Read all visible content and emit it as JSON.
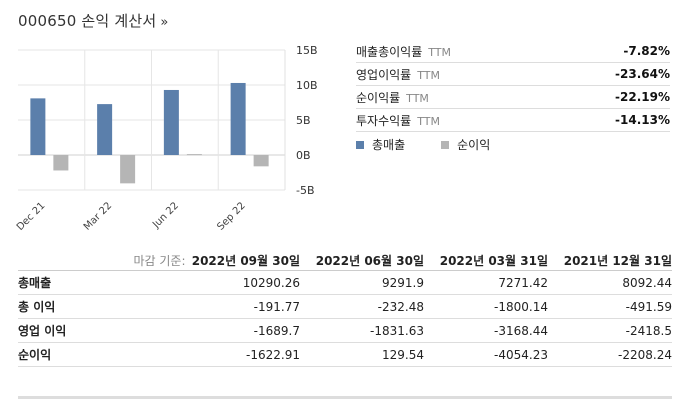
{
  "header": {
    "title": "000650 손익 계산서",
    "chevron": "»"
  },
  "chart_data": {
    "type": "bar",
    "categories": [
      "Dec 21",
      "Mar 22",
      "Jun 22",
      "Sep 22"
    ],
    "series": [
      {
        "name": "총매출",
        "values": [
          8.09,
          7.27,
          9.29,
          10.29
        ],
        "color": "#5b7fab"
      },
      {
        "name": "순이익",
        "values": [
          -2.21,
          -4.05,
          0.13,
          -1.62
        ],
        "color": "#b5b5b5"
      }
    ],
    "ylim": [
      -5,
      15
    ],
    "ytick_labels": [
      "15B",
      "10B",
      "5B",
      "0B",
      "-5B"
    ],
    "ytick_values": [
      15,
      10,
      5,
      0,
      -5
    ],
    "grid": true,
    "legend_position": "right"
  },
  "ratios": [
    {
      "label": "매출총이익률",
      "suffix": "TTM",
      "value": "-7.82%"
    },
    {
      "label": "영업이익률",
      "suffix": "TTM",
      "value": "-23.64%"
    },
    {
      "label": "순이익률",
      "suffix": "TTM",
      "value": "-22.19%"
    },
    {
      "label": "투자수익률",
      "suffix": "TTM",
      "value": "-14.13%"
    }
  ],
  "legend": [
    {
      "label": "총매출",
      "color": "#5b7fab"
    },
    {
      "label": "순이익",
      "color": "#b5b5b5"
    }
  ],
  "table": {
    "caption": "마감 기준:",
    "columns": [
      "2022년 09월 30일",
      "2022년 06월 30일",
      "2022년 03월 31일",
      "2021년 12월 31일"
    ],
    "rows": [
      {
        "label": "총매출",
        "values": [
          "10290.26",
          "9291.9",
          "7271.42",
          "8092.44"
        ]
      },
      {
        "label": "총 이익",
        "values": [
          "-191.77",
          "-232.48",
          "-1800.14",
          "-491.59"
        ]
      },
      {
        "label": "영업 이익",
        "values": [
          "-1689.7",
          "-1831.63",
          "-3168.44",
          "-2418.5"
        ]
      },
      {
        "label": "순이익",
        "values": [
          "-1622.91",
          "129.54",
          "-4054.23",
          "-2208.24"
        ]
      }
    ]
  }
}
